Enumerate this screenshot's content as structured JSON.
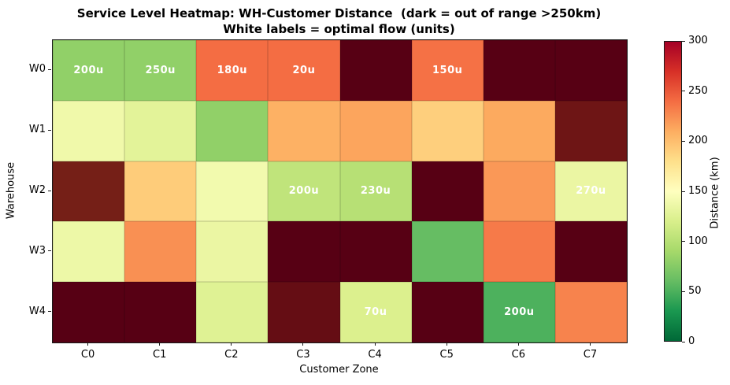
{
  "title": {
    "line1": "Service Level Heatmap: WH-Customer Distance  (dark = out of range >250km)",
    "line2": "White labels = optimal flow (units)"
  },
  "chart_data": {
    "type": "heatmap",
    "xlabel": "Customer Zone",
    "ylabel": "Warehouse",
    "rows": [
      "W0",
      "W1",
      "W2",
      "W3",
      "W4"
    ],
    "columns": [
      "C0",
      "C1",
      "C2",
      "C3",
      "C4",
      "C5",
      "C6",
      "C7"
    ],
    "distance_km": [
      [
        80,
        80,
        240,
        240,
        300,
        238,
        300,
        300
      ],
      [
        138,
        128,
        80,
        208,
        214,
        190,
        212,
        275
      ],
      [
        265,
        192,
        140,
        105,
        100,
        300,
        220,
        134
      ],
      [
        136,
        224,
        134,
        300,
        300,
        60,
        234,
        300
      ],
      [
        300,
        300,
        125,
        285,
        122,
        300,
        50,
        230
      ]
    ],
    "flow_labels": [
      [
        "200u",
        "250u",
        "180u",
        "20u",
        null,
        "150u",
        null,
        null
      ],
      [
        null,
        null,
        null,
        null,
        null,
        null,
        null,
        null
      ],
      [
        null,
        null,
        null,
        "200u",
        "230u",
        null,
        null,
        "270u"
      ],
      [
        null,
        null,
        null,
        null,
        null,
        null,
        null,
        null
      ],
      [
        null,
        null,
        null,
        null,
        "70u",
        null,
        "200u",
        null
      ]
    ],
    "out_of_range_threshold_km": 250,
    "colorbar": {
      "label": "Distance (km)",
      "min": 0,
      "max": 300,
      "ticks": [
        0,
        50,
        100,
        150,
        200,
        250,
        300
      ],
      "colormap": "RdYlGn_r"
    }
  },
  "colors": {
    "colormap_stops": [
      "#006837",
      "#1a9850",
      "#66bd63",
      "#a6d96a",
      "#d9ef8b",
      "#ffffbf",
      "#fee08b",
      "#fdae61",
      "#f46d43",
      "#d73027",
      "#a50026"
    ],
    "out_of_range_darken_factor": 0.53,
    "flow_label_text": "#ffffff"
  }
}
